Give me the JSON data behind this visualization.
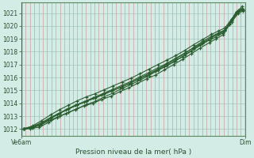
{
  "title": "Pression niveau de la mer( hPa )",
  "ylabel_ticks": [
    1012,
    1013,
    1014,
    1015,
    1016,
    1017,
    1018,
    1019,
    1020,
    1021
  ],
  "ylim": [
    1011.5,
    1021.8
  ],
  "x_tick_positions": [
    0.0,
    1.0
  ],
  "x_tick_labels": [
    "Ve6am",
    "Dim"
  ],
  "bg_color": "#d4ece6",
  "hgrid_color": "#b8d8d0",
  "vgrid_color": "#c8a8a8",
  "line_color": "#2a5e30",
  "spine_color": "#5a8a60",
  "lines": [
    [
      0.01,
      1012.0,
      0.04,
      1012.05,
      0.08,
      1012.15,
      0.12,
      1012.5,
      0.16,
      1012.9,
      0.2,
      1013.2,
      0.24,
      1013.5,
      0.28,
      1013.8,
      0.32,
      1014.0,
      0.36,
      1014.3,
      0.4,
      1014.55,
      0.44,
      1014.9,
      0.48,
      1015.2,
      0.52,
      1015.55,
      0.56,
      1015.9,
      0.6,
      1016.2,
      0.64,
      1016.6,
      0.68,
      1017.0,
      0.72,
      1017.4,
      0.76,
      1017.85,
      0.8,
      1018.3,
      0.84,
      1018.7,
      0.87,
      1019.0,
      0.9,
      1019.3,
      0.93,
      1020.1,
      0.96,
      1021.0,
      0.985,
      1021.5
    ],
    [
      0.01,
      1012.0,
      0.04,
      1012.1,
      0.08,
      1012.3,
      0.12,
      1012.7,
      0.16,
      1013.1,
      0.2,
      1013.5,
      0.24,
      1013.85,
      0.28,
      1014.1,
      0.32,
      1014.4,
      0.36,
      1014.65,
      0.4,
      1014.95,
      0.44,
      1015.2,
      0.48,
      1015.5,
      0.52,
      1015.85,
      0.56,
      1016.15,
      0.6,
      1016.5,
      0.64,
      1016.85,
      0.68,
      1017.25,
      0.72,
      1017.6,
      0.76,
      1018.05,
      0.8,
      1018.5,
      0.84,
      1018.9,
      0.87,
      1019.15,
      0.9,
      1019.45,
      0.93,
      1020.2,
      0.96,
      1021.1,
      0.985,
      1021.35
    ],
    [
      0.01,
      1012.05,
      0.05,
      1012.2,
      0.09,
      1012.5,
      0.13,
      1012.9,
      0.17,
      1013.25,
      0.21,
      1013.6,
      0.25,
      1013.9,
      0.29,
      1014.2,
      0.33,
      1014.5,
      0.37,
      1014.8,
      0.41,
      1015.1,
      0.45,
      1015.4,
      0.49,
      1015.7,
      0.53,
      1016.05,
      0.57,
      1016.4,
      0.61,
      1016.75,
      0.65,
      1017.1,
      0.69,
      1017.5,
      0.73,
      1017.9,
      0.77,
      1018.3,
      0.81,
      1018.7,
      0.85,
      1019.1,
      0.88,
      1019.4,
      0.91,
      1019.7,
      0.94,
      1020.4,
      0.97,
      1021.15,
      0.99,
      1021.25
    ],
    [
      0.01,
      1012.0,
      0.05,
      1012.25,
      0.09,
      1012.65,
      0.13,
      1013.1,
      0.17,
      1013.5,
      0.21,
      1013.85,
      0.25,
      1014.2,
      0.29,
      1014.5,
      0.33,
      1014.75,
      0.37,
      1015.05,
      0.41,
      1015.35,
      0.45,
      1015.65,
      0.49,
      1015.95,
      0.53,
      1016.3,
      0.57,
      1016.65,
      0.61,
      1017.0,
      0.65,
      1017.35,
      0.69,
      1017.7,
      0.73,
      1018.1,
      0.77,
      1018.55,
      0.81,
      1018.95,
      0.85,
      1019.35,
      0.88,
      1019.6,
      0.91,
      1019.85,
      0.94,
      1020.55,
      0.97,
      1021.2,
      0.99,
      1021.3
    ],
    [
      0.01,
      1012.0,
      0.05,
      1012.1,
      0.09,
      1012.35,
      0.13,
      1012.7,
      0.17,
      1013.0,
      0.21,
      1013.3,
      0.25,
      1013.6,
      0.29,
      1013.9,
      0.33,
      1014.15,
      0.37,
      1014.5,
      0.41,
      1014.8,
      0.45,
      1015.15,
      0.49,
      1015.45,
      0.53,
      1015.8,
      0.57,
      1016.15,
      0.61,
      1016.55,
      0.65,
      1016.9,
      0.69,
      1017.3,
      0.73,
      1017.75,
      0.77,
      1018.2,
      0.81,
      1018.65,
      0.85,
      1019.1,
      0.88,
      1019.35,
      0.91,
      1019.6,
      0.94,
      1020.3,
      0.97,
      1021.0,
      0.99,
      1021.15
    ],
    [
      0.01,
      1012.0,
      0.05,
      1012.15,
      0.09,
      1012.45,
      0.13,
      1012.85,
      0.17,
      1013.2,
      0.21,
      1013.55,
      0.25,
      1013.85,
      0.29,
      1014.15,
      0.33,
      1014.4,
      0.37,
      1014.7,
      0.41,
      1015.0,
      0.45,
      1015.3,
      0.49,
      1015.6,
      0.53,
      1015.95,
      0.57,
      1016.3,
      0.61,
      1016.65,
      0.65,
      1017.05,
      0.69,
      1017.45,
      0.73,
      1017.85,
      0.77,
      1018.35,
      0.81,
      1018.8,
      0.85,
      1019.2,
      0.88,
      1019.45,
      0.91,
      1019.7,
      0.94,
      1020.4,
      0.97,
      1021.1,
      0.99,
      1021.2
    ]
  ],
  "n_hgrid": 10,
  "n_vgrid_white": 13,
  "n_vgrid_pink": 52
}
